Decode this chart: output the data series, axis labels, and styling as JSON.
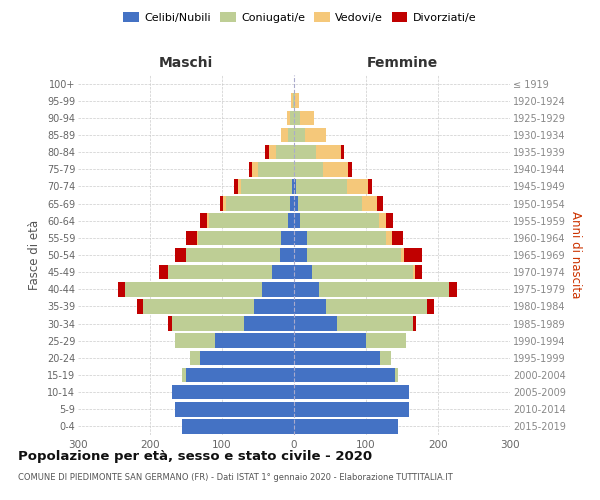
{
  "age_groups": [
    "0-4",
    "5-9",
    "10-14",
    "15-19",
    "20-24",
    "25-29",
    "30-34",
    "35-39",
    "40-44",
    "45-49",
    "50-54",
    "55-59",
    "60-64",
    "65-69",
    "70-74",
    "75-79",
    "80-84",
    "85-89",
    "90-94",
    "95-99",
    "100+"
  ],
  "birth_years": [
    "2015-2019",
    "2010-2014",
    "2005-2009",
    "2000-2004",
    "1995-1999",
    "1990-1994",
    "1985-1989",
    "1980-1984",
    "1975-1979",
    "1970-1974",
    "1965-1969",
    "1960-1964",
    "1955-1959",
    "1950-1954",
    "1945-1949",
    "1940-1944",
    "1935-1939",
    "1930-1934",
    "1925-1929",
    "1920-1924",
    "≤ 1919"
  ],
  "male": {
    "celibi": [
      155,
      165,
      170,
      150,
      130,
      110,
      70,
      55,
      45,
      30,
      20,
      18,
      8,
      5,
      3,
      0,
      0,
      0,
      0,
      0,
      0
    ],
    "coniugati": [
      0,
      0,
      0,
      5,
      15,
      55,
      100,
      155,
      190,
      145,
      130,
      115,
      110,
      90,
      70,
      50,
      25,
      8,
      5,
      2,
      0
    ],
    "vedovi": [
      0,
      0,
      0,
      0,
      0,
      0,
      0,
      0,
      0,
      0,
      0,
      2,
      3,
      3,
      5,
      8,
      10,
      10,
      5,
      2,
      0
    ],
    "divorziati": [
      0,
      0,
      0,
      0,
      0,
      0,
      5,
      8,
      10,
      12,
      15,
      15,
      10,
      5,
      5,
      5,
      5,
      0,
      0,
      0,
      0
    ]
  },
  "female": {
    "nubili": [
      145,
      160,
      160,
      140,
      120,
      100,
      60,
      45,
      35,
      25,
      18,
      18,
      8,
      5,
      3,
      0,
      0,
      0,
      0,
      0,
      0
    ],
    "coniugate": [
      0,
      0,
      0,
      5,
      15,
      55,
      105,
      140,
      180,
      140,
      130,
      110,
      110,
      90,
      70,
      40,
      30,
      15,
      8,
      2,
      0
    ],
    "vedove": [
      0,
      0,
      0,
      0,
      0,
      0,
      0,
      0,
      0,
      3,
      5,
      8,
      10,
      20,
      30,
      35,
      35,
      30,
      20,
      5,
      0
    ],
    "divorziate": [
      0,
      0,
      0,
      0,
      0,
      0,
      5,
      10,
      12,
      10,
      25,
      15,
      10,
      8,
      5,
      5,
      5,
      0,
      0,
      0,
      0
    ]
  },
  "colors": {
    "celibi_nubili": "#4472C4",
    "coniugati_e": "#BECE95",
    "vedovi_e": "#F5C87A",
    "divorziati_e": "#C00000"
  },
  "title": "Popolazione per età, sesso e stato civile - 2020",
  "subtitle": "COMUNE DI PIEDIMONTE SAN GERMANO (FR) - Dati ISTAT 1° gennaio 2020 - Elaborazione TUTTITALIA.IT",
  "ylabel_left": "Fasce di età",
  "ylabel_right": "Anni di nascita",
  "xlabel_left": "Maschi",
  "xlabel_right": "Femmine",
  "xlim": 300,
  "bg_color": "#ffffff",
  "grid_color": "#cccccc"
}
